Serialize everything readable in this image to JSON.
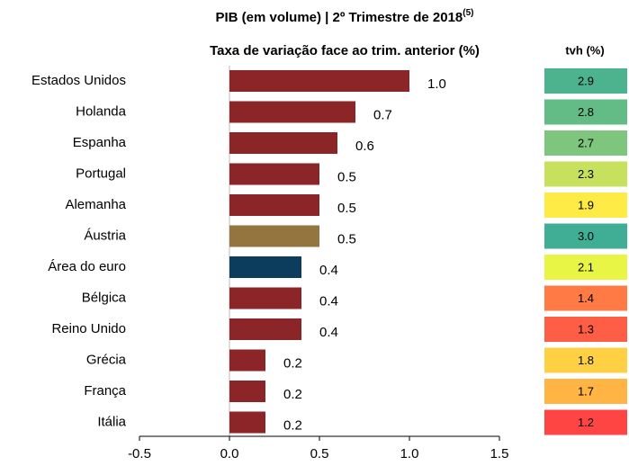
{
  "chart_data": {
    "type": "hbar",
    "title": "PIB (em volume) | 2º Trimestre de 2018",
    "title_superscript": "(5)",
    "subtitle": "Taxa de variação face ao trim. anterior (%)",
    "categories": [
      "Estados Unidos",
      "Holanda",
      "Espanha",
      "Portugal",
      "Alemanha",
      "Áustria",
      "Área do euro",
      "Bélgica",
      "Reino Unido",
      "Grécia",
      "França",
      "Itália"
    ],
    "values": [
      1.0,
      0.7,
      0.6,
      0.5,
      0.5,
      0.5,
      0.4,
      0.4,
      0.4,
      0.2,
      0.2,
      0.2
    ],
    "value_labels": [
      "1.0",
      "0.7",
      "0.6",
      "0.5",
      "0.5",
      "0.5",
      "0.4",
      "0.4",
      "0.4",
      "0.2",
      "0.2",
      "0.2"
    ],
    "colors": [
      "#8b2528",
      "#8b2528",
      "#8b2528",
      "#8b2528",
      "#8b2528",
      "#94743f",
      "#0c3d5c",
      "#8b2528",
      "#8b2528",
      "#8b2528",
      "#8b2528",
      "#8b2528"
    ],
    "xlim": [
      -0.5,
      1.5
    ],
    "xticks": [
      -0.5,
      {
        "value": 0,
        "label": "0.0"
      },
      0.5,
      {
        "value": 1,
        "label": "1.0"
      },
      1.5
    ],
    "tvh": {
      "title": "tvh (%)",
      "values": [
        2.9,
        2.8,
        2.7,
        2.3,
        1.9,
        3.0,
        2.1,
        1.4,
        1.3,
        1.8,
        1.7,
        1.2
      ],
      "value_labels": [
        "2.9",
        "2.8",
        "2.7",
        "2.3",
        "1.9",
        "3.0",
        "2.1",
        "1.4",
        "1.3",
        "1.8",
        "1.7",
        "1.2"
      ],
      "colors": [
        "#4db38f",
        "#63bc85",
        "#7ec57d",
        "#c7e05e",
        "#ffeb46",
        "#3fae95",
        "#e8f545",
        "#ff7a45",
        "#ff5e46",
        "#ffd043",
        "#ffb443",
        "#ff4444"
      ]
    }
  }
}
